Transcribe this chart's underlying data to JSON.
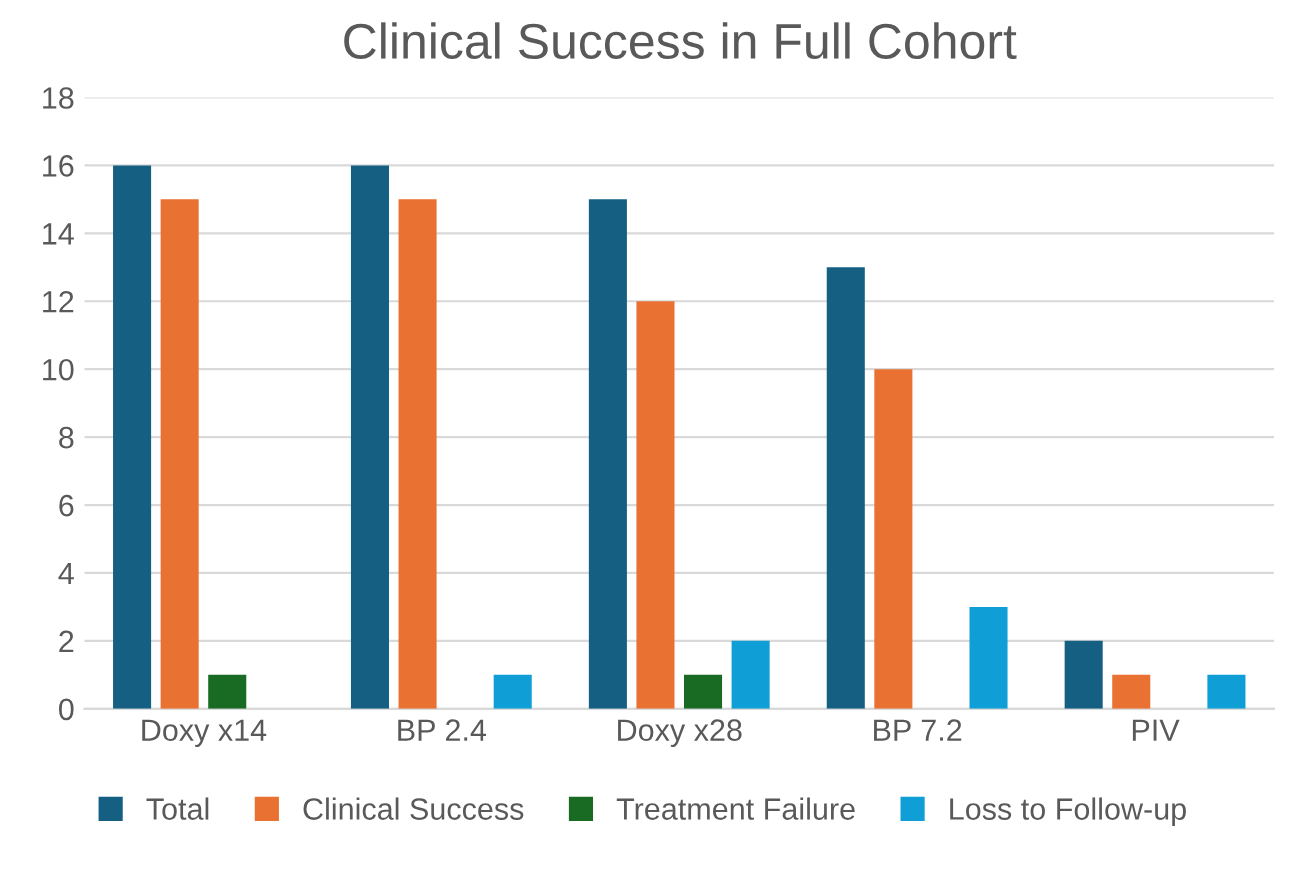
{
  "chart_data": {
    "type": "bar",
    "title": "Clinical Success in Full Cohort",
    "categories": [
      "Doxy x14",
      "BP 2.4",
      "Doxy x28",
      "BP 7.2",
      "PIV"
    ],
    "series": [
      {
        "name": "Total",
        "color": "#156082",
        "values": [
          16,
          16,
          15,
          13,
          2
        ]
      },
      {
        "name": "Clinical Success",
        "color": "#e97132",
        "values": [
          15,
          15,
          12,
          10,
          1
        ]
      },
      {
        "name": "Treatment Failure",
        "color": "#196b24",
        "values": [
          1,
          0,
          1,
          0,
          0
        ]
      },
      {
        "name": "Loss to Follow-up",
        "color": "#0f9ed5",
        "values": [
          0,
          1,
          2,
          3,
          1
        ]
      }
    ],
    "ylim": [
      0,
      18
    ],
    "yticks": [
      0,
      2,
      4,
      6,
      8,
      10,
      12,
      14,
      16,
      18
    ],
    "grid": "y",
    "legend": "bottom"
  }
}
